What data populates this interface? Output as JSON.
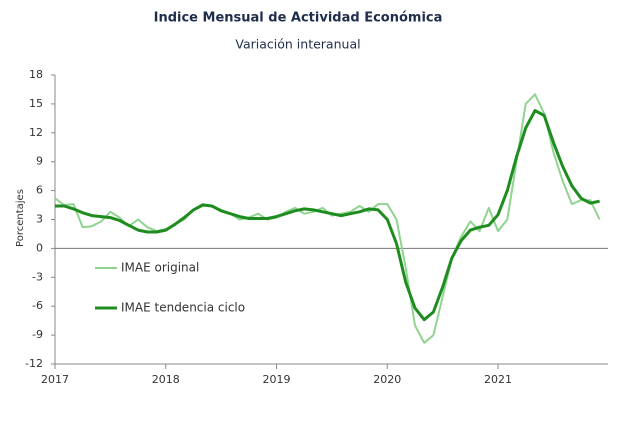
{
  "chart_data": {
    "type": "line",
    "title": "Indice Mensual de Actividad Económica",
    "subtitle": "Variación interanual",
    "y_label": "Porcentajes",
    "categories": [
      "2017",
      null,
      null,
      null,
      null,
      null,
      null,
      null,
      null,
      null,
      null,
      null,
      "2018",
      null,
      null,
      null,
      null,
      null,
      null,
      null,
      null,
      null,
      null,
      null,
      "2019",
      null,
      null,
      null,
      null,
      null,
      null,
      null,
      null,
      null,
      null,
      null,
      "2020",
      null,
      null,
      null,
      null,
      null,
      null,
      null,
      null,
      null,
      null,
      null,
      "2021",
      null,
      null,
      null,
      null,
      null,
      null,
      null,
      null,
      null,
      null,
      null
    ],
    "series": [
      {
        "name": "IMAE original",
        "color": "#8fd48f",
        "width": 2,
        "values": [
          5.2,
          4.5,
          4.6,
          2.2,
          2.3,
          2.8,
          3.8,
          3.2,
          2.3,
          3.0,
          2.2,
          1.8,
          2.0,
          2.5,
          3.0,
          4.0,
          4.6,
          4.4,
          4.0,
          3.6,
          3.0,
          3.2,
          3.6,
          3.0,
          3.2,
          3.8,
          4.2,
          3.6,
          3.8,
          4.2,
          3.4,
          3.6,
          3.8,
          4.4,
          3.8,
          4.6,
          4.6,
          3.0,
          -2.0,
          -8.0,
          -9.8,
          -9.0,
          -5.0,
          -1.0,
          1.2,
          2.8,
          1.8,
          4.2,
          1.8,
          3.0,
          9.0,
          15.0,
          16.0,
          14.0,
          10.0,
          7.0,
          4.6,
          5.0,
          5.0,
          3.0
        ]
      },
      {
        "name": "IMAE tendencia ciclo",
        "color": "#1e8c1e",
        "width": 3,
        "values": [
          4.4,
          4.4,
          4.1,
          3.7,
          3.4,
          3.3,
          3.2,
          2.9,
          2.4,
          1.9,
          1.7,
          1.7,
          1.9,
          2.5,
          3.2,
          4.0,
          4.5,
          4.4,
          3.9,
          3.6,
          3.3,
          3.1,
          3.1,
          3.1,
          3.3,
          3.6,
          3.9,
          4.1,
          4.0,
          3.8,
          3.6,
          3.4,
          3.6,
          3.8,
          4.1,
          4.0,
          3.0,
          0.5,
          -3.5,
          -6.2,
          -7.4,
          -6.6,
          -4.0,
          -1.0,
          0.8,
          1.9,
          2.2,
          2.4,
          3.5,
          6.0,
          9.5,
          12.5,
          14.3,
          13.8,
          11.0,
          8.5,
          6.5,
          5.2,
          4.7,
          4.9
        ]
      }
    ],
    "ylim": [
      -12,
      18
    ],
    "yticks": [
      -12,
      -9,
      -6,
      -3,
      0,
      3,
      6,
      9,
      12,
      15,
      18
    ],
    "grid": false
  }
}
